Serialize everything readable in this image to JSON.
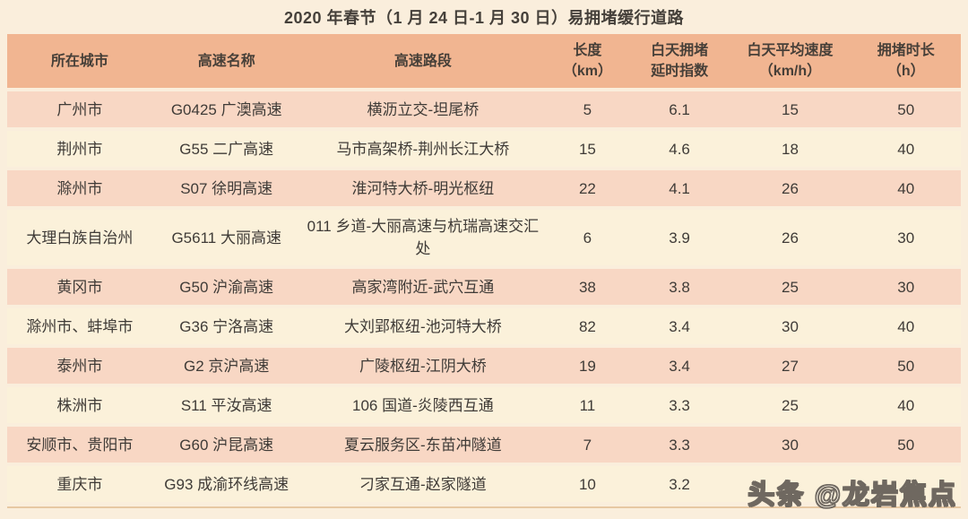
{
  "chart_data": {
    "type": "table",
    "title": "2020 年春节（1 月 24 日-1 月 30 日）易拥堵缓行道路",
    "columns": [
      "所在城市",
      "高速名称",
      "高速路段",
      "长度（km）",
      "白天拥堵延时指数",
      "白天平均速度（km/h）",
      "拥堵时长（h）"
    ],
    "rows": [
      [
        "广州市",
        "G0425 广澳高速",
        "横沥立交-坦尾桥",
        "5",
        "6.1",
        "15",
        "50"
      ],
      [
        "荆州市",
        "G55 二广高速",
        "马市高架桥-荆州长江大桥",
        "15",
        "4.6",
        "18",
        "40"
      ],
      [
        "滁州市",
        "S07 徐明高速",
        "淮河特大桥-明光枢纽",
        "22",
        "4.1",
        "26",
        "40"
      ],
      [
        "大理白族自治州",
        "G5611 大丽高速",
        "011 乡道-大丽高速与杭瑞高速交汇处",
        "6",
        "3.9",
        "26",
        "30"
      ],
      [
        "黄冈市",
        "G50 沪渝高速",
        "高家湾附近-武穴互通",
        "38",
        "3.8",
        "25",
        "30"
      ],
      [
        "滁州市、蚌埠市",
        "G36 宁洛高速",
        "大刘郢枢纽-池河特大桥",
        "82",
        "3.4",
        "30",
        "40"
      ],
      [
        "泰州市",
        "G2 京沪高速",
        "广陵枢纽-江阴大桥",
        "19",
        "3.4",
        "27",
        "50"
      ],
      [
        "株洲市",
        "S11 平汝高速",
        "106 国道-炎陵西互通",
        "11",
        "3.3",
        "25",
        "40"
      ],
      [
        "安顺市、贵阳市",
        "G60 沪昆高速",
        "夏云服务区-东苗冲隧道",
        "7",
        "3.3",
        "30",
        "50"
      ],
      [
        "重庆市",
        "G93 成渝环线高速",
        "刁家互通-赵家隧道",
        "10",
        "3.2",
        "",
        ""
      ]
    ]
  },
  "header_display": [
    {
      "l1": "所在城市",
      "l2": ""
    },
    {
      "l1": "高速名称",
      "l2": ""
    },
    {
      "l1": "高速路段",
      "l2": ""
    },
    {
      "l1": "长度",
      "l2": "（km）"
    },
    {
      "l1": "白天拥堵",
      "l2": "延时指数"
    },
    {
      "l1": "白天平均速度",
      "l2": "（km/h）"
    },
    {
      "l1": "拥堵时长",
      "l2": "（h）"
    }
  ],
  "watermark": {
    "text": "头条 @龙岩焦点"
  },
  "colors": {
    "page_background": "#faeedc",
    "header_background": "#f1b591",
    "row_pink": "#f8d7c4",
    "row_cream": "#fbf1da",
    "text": "#3f3b37",
    "bottom_rule": "#e7c8a3",
    "watermark_fill": "#fcf5e6",
    "watermark_outline": "#6f6860"
  }
}
